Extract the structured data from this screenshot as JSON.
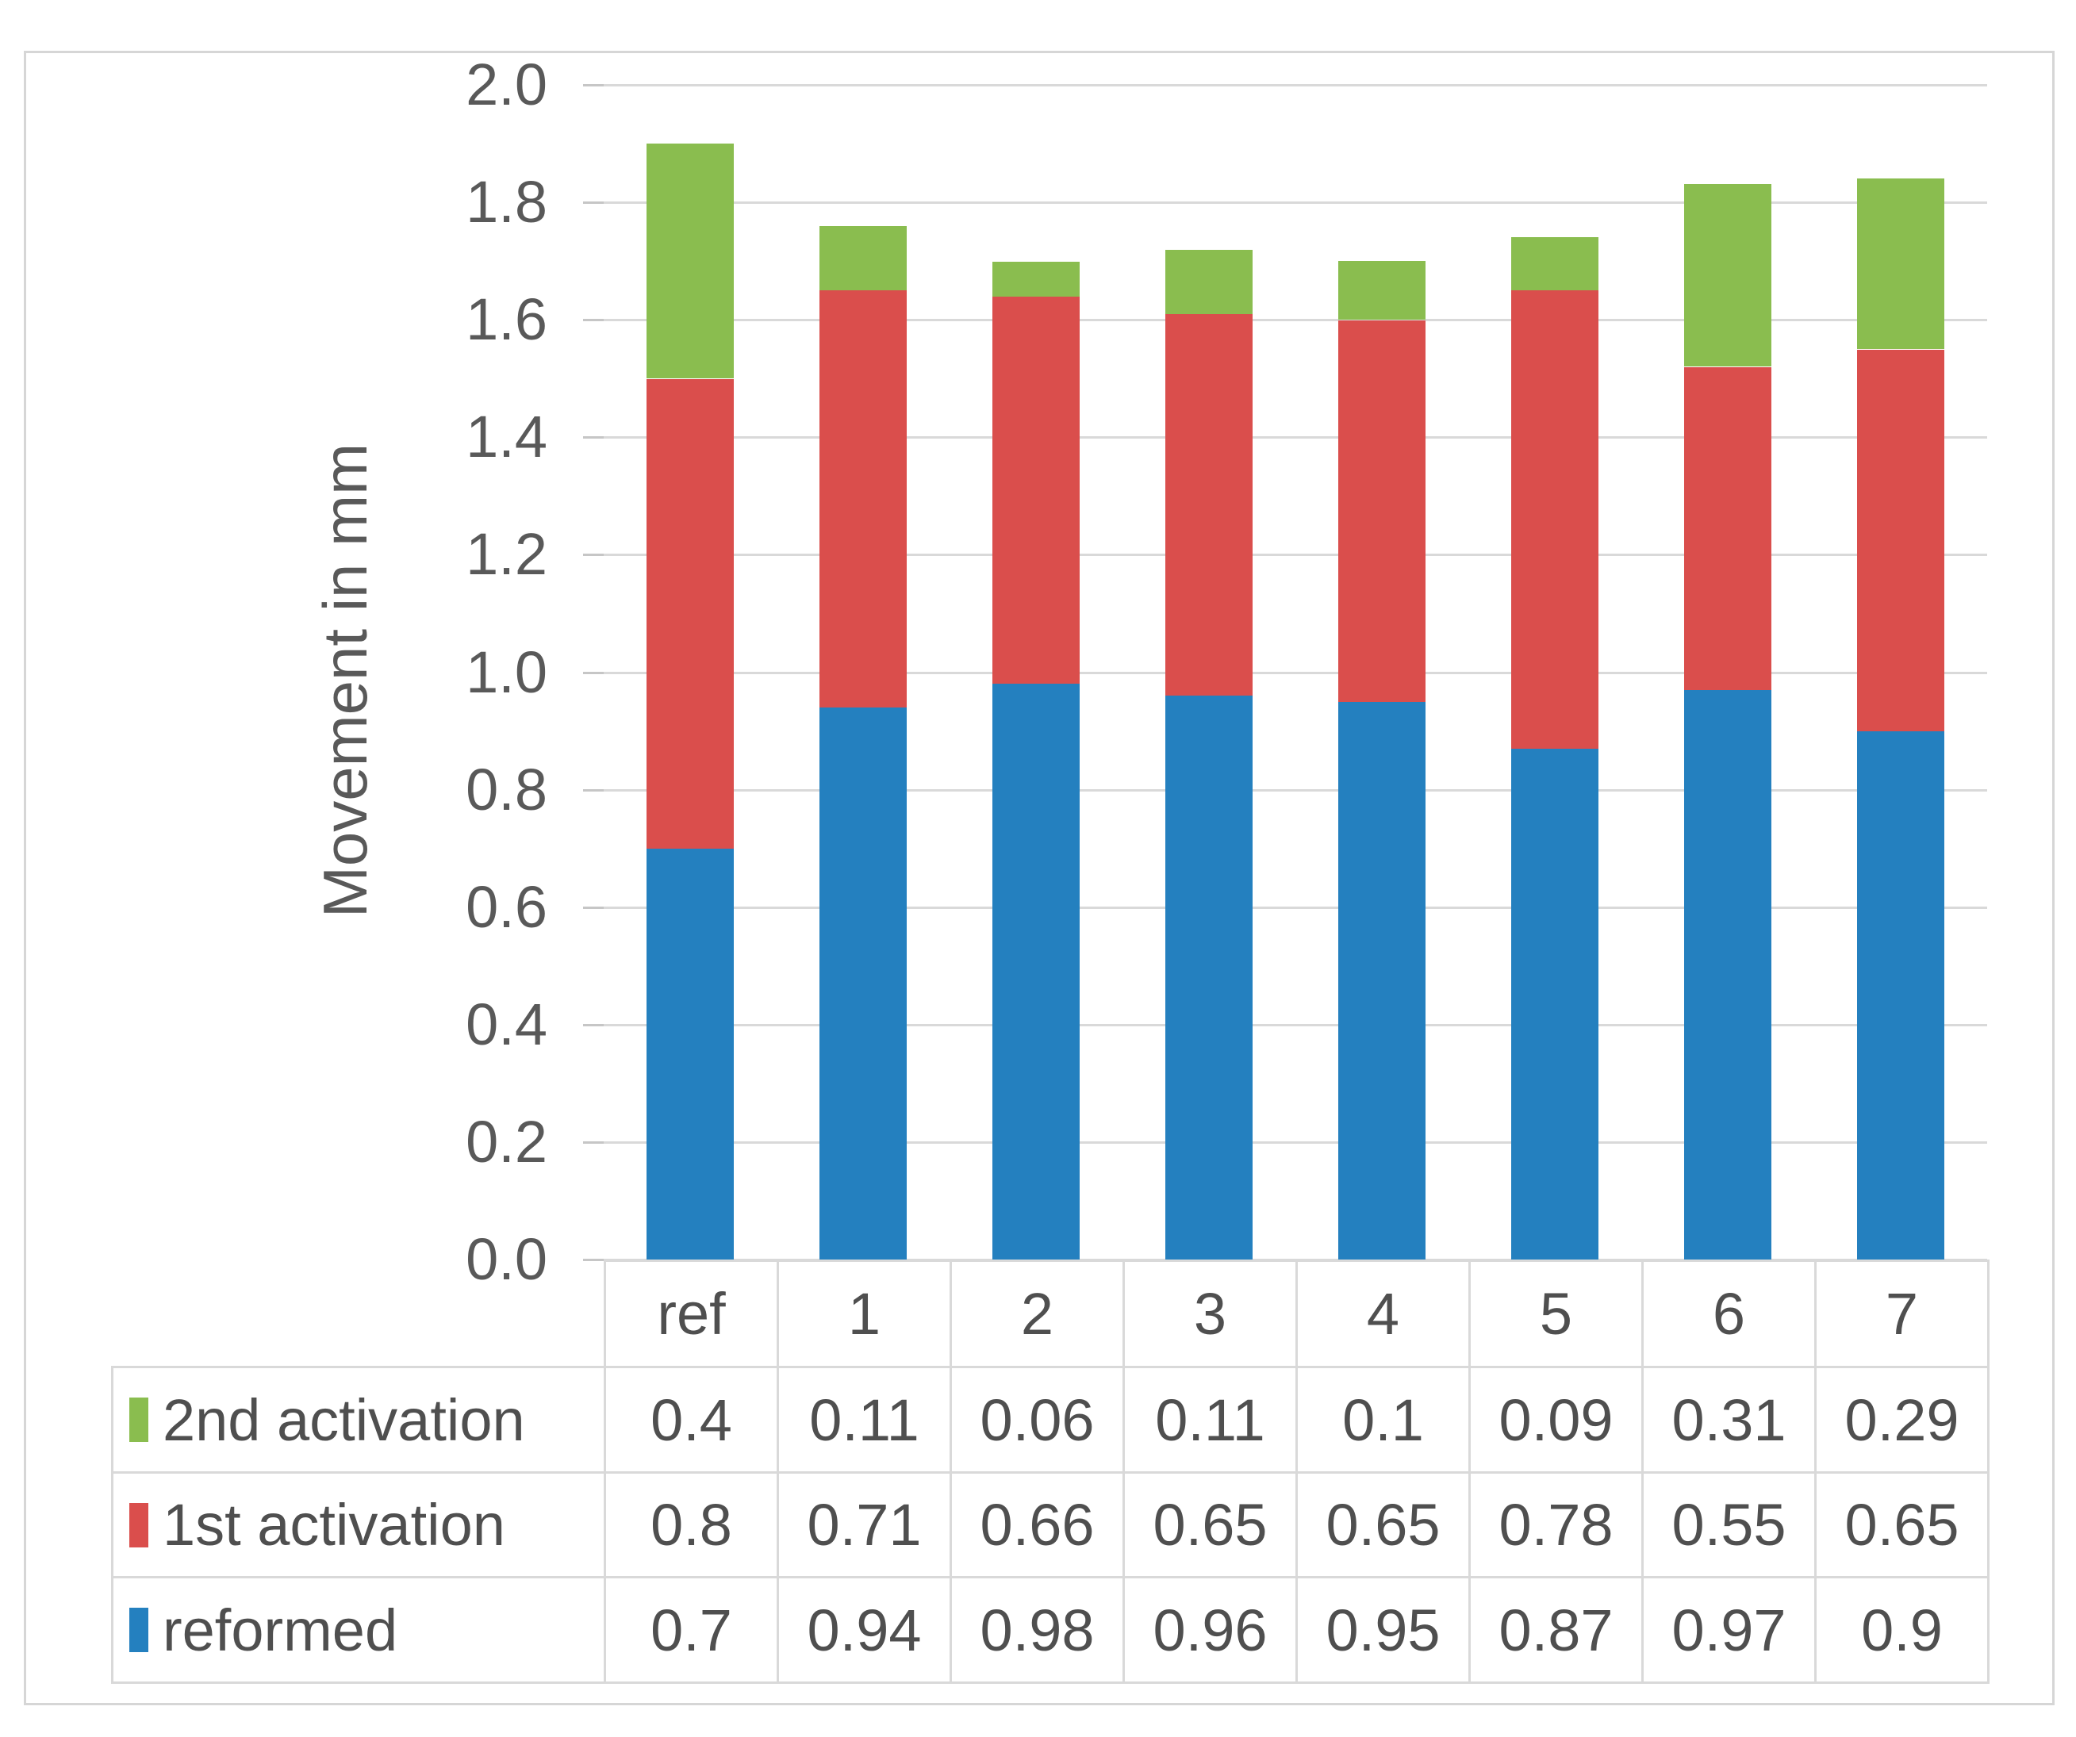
{
  "chart_data": {
    "type": "bar",
    "stacked": true,
    "ylabel": "Movement in mm",
    "xlabel": "",
    "categories": [
      "ref",
      "1",
      "2",
      "3",
      "4",
      "5",
      "6",
      "7"
    ],
    "series": [
      {
        "name": "reformed",
        "color": "#2480BF",
        "values": [
          0.7,
          0.94,
          0.98,
          0.96,
          0.95,
          0.87,
          0.97,
          0.9
        ],
        "display": [
          "0.7",
          "0.94",
          "0.98",
          "0.96",
          "0.95",
          "0.87",
          "0.97",
          "0.9"
        ]
      },
      {
        "name": "1st activation",
        "color": "#DA4E4C",
        "values": [
          0.8,
          0.71,
          0.66,
          0.65,
          0.65,
          0.78,
          0.55,
          0.65
        ],
        "display": [
          "0.8",
          "0.71",
          "0.66",
          "0.65",
          "0.65",
          "0.78",
          "0.55",
          "0.65"
        ]
      },
      {
        "name": "2nd activation",
        "color": "#8ABD4F",
        "values": [
          0.4,
          0.11,
          0.06,
          0.11,
          0.1,
          0.09,
          0.31,
          0.29
        ],
        "display": [
          "0.4",
          "0.11",
          "0.06",
          "0.11",
          "0.1",
          "0.09",
          "0.31",
          "0.29"
        ]
      }
    ],
    "ylim": [
      0,
      2
    ],
    "ytick_step": 0.2,
    "yticks": [
      "2.0",
      "1.8",
      "1.6",
      "1.4",
      "1.2",
      "1.0",
      "0.8",
      "0.6",
      "0.4",
      "0.2",
      "0.0"
    ],
    "grid": true,
    "legend_position": "table-left",
    "table_row_order_top_to_bottom": [
      "2nd activation",
      "1st activation",
      "reformed"
    ]
  }
}
